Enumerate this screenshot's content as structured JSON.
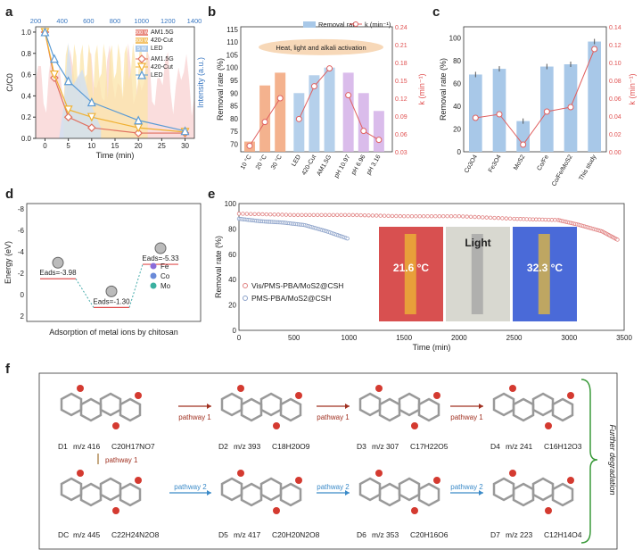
{
  "figure": {
    "panel_letters": [
      "a",
      "b",
      "c",
      "d",
      "e",
      "f"
    ]
  },
  "colors": {
    "am15g": "#e07060",
    "cut420": "#f0b030",
    "led": "#5b9bd5",
    "removal_bar": "#a8c8e8",
    "k_line": "#e06060",
    "red_axis": "#e05050",
    "blue_axis": "#3a78c2"
  },
  "chart_data": [
    {
      "id": "a",
      "type": "line",
      "xlabel": "Time (min)",
      "ylabel": "C/C0",
      "ylabel_right": "Intensity (a.u.)",
      "top_axis_ticks": [
        "200",
        "400",
        "600",
        "800",
        "1000",
        "1200",
        "1400"
      ],
      "xticks": [
        "0",
        "5",
        "10",
        "15",
        "20",
        "25",
        "30"
      ],
      "yticks": [
        "0.0",
        "0.2",
        "0.4",
        "0.6",
        "0.8",
        "1.0"
      ],
      "xlim": [
        -2,
        32
      ],
      "ylim": [
        0,
        1.05
      ],
      "spectrum_legend": [
        {
          "name": "300 W",
          "label": "AM1.5G"
        },
        {
          "name": "300 W",
          "label": "420-Cut"
        },
        {
          "name": "5 W",
          "label": "LED"
        }
      ],
      "series": [
        {
          "name": "AM1.5G",
          "marker": "diamond",
          "x": [
            0,
            2,
            5,
            10,
            20,
            30
          ],
          "y": [
            1.0,
            0.57,
            0.2,
            0.1,
            0.05,
            0.05
          ]
        },
        {
          "name": "420-Cut",
          "marker": "triangle-down",
          "x": [
            0,
            2,
            5,
            10,
            20,
            30
          ],
          "y": [
            1.0,
            0.6,
            0.27,
            0.2,
            0.1,
            0.06
          ]
        },
        {
          "name": "LED",
          "marker": "triangle-up",
          "x": [
            0,
            2,
            5,
            10,
            20,
            30
          ],
          "y": [
            1.0,
            0.75,
            0.54,
            0.34,
            0.17,
            0.07
          ]
        }
      ]
    },
    {
      "id": "b",
      "type": "bar",
      "ylabel": "Removal rate (%)",
      "ylabel_right": "k (min⁻¹)",
      "legend": [
        "Removal rate",
        "k (min⁻¹)"
      ],
      "annotation": "Heat, light and alkali activation",
      "categories": [
        "10 °C",
        "20 °C",
        "30 °C",
        "LED",
        "420-Cut",
        "AM1.5G",
        "pH 10.97",
        "pH 6.96",
        "pH 3.16"
      ],
      "yticks_left": [
        "70",
        "75",
        "80",
        "85",
        "90",
        "95",
        "100",
        "105",
        "110",
        "115"
      ],
      "yticks_right": [
        "0.03",
        "0.06",
        "0.09",
        "0.12",
        "0.15",
        "0.18",
        "0.21",
        "0.24"
      ],
      "ylim": [
        67,
        116
      ],
      "ylim_right": [
        0.03,
        0.24
      ],
      "values": [
        71,
        93,
        98,
        90,
        97,
        100,
        98,
        90,
        83
      ],
      "k": [
        0.04,
        0.08,
        0.12,
        0.085,
        0.14,
        0.17,
        0.125,
        0.065,
        0.05
      ]
    },
    {
      "id": "c",
      "type": "bar",
      "ylabel": "Removal rate (%)",
      "ylabel_right": "k (min⁻¹)",
      "categories": [
        "Co3O4",
        "Fe3O4",
        "MoS2",
        "Co/Fe",
        "Co/Fe/MoS2",
        "This study"
      ],
      "yticks_left": [
        "0",
        "20",
        "40",
        "60",
        "80",
        "100"
      ],
      "yticks_right": [
        "0.00",
        "0.02",
        "0.04",
        "0.06",
        "0.08",
        "0.10",
        "0.12",
        "0.14"
      ],
      "ylim": [
        0,
        110
      ],
      "ylim_right": [
        0,
        0.14
      ],
      "values": [
        68,
        73,
        27,
        75,
        77,
        97
      ],
      "k": [
        0.038,
        0.042,
        0.008,
        0.045,
        0.05,
        0.115
      ]
    },
    {
      "id": "d",
      "type": "scatter",
      "title": "Adsorption of metal ions by chitosan",
      "ylabel": "Energy (eV)",
      "yticks": [
        "-8",
        "-6",
        "-4",
        "-2",
        "0",
        "2"
      ],
      "ylim": [
        -8.5,
        2.5
      ],
      "points": [
        {
          "label": "Eads=-3.98",
          "value": -3.98
        },
        {
          "label": "Eads=-1.30",
          "value": -1.3
        },
        {
          "label": "Eads=-5.33",
          "value": -5.33
        }
      ],
      "legend": [
        "Fe",
        "Co",
        "Mo"
      ]
    },
    {
      "id": "e",
      "type": "scatter",
      "xlabel": "Time (min)",
      "ylabel": "Removal rate (%)",
      "xticks": [
        "0",
        "500",
        "1000",
        "1500",
        "2000",
        "2500",
        "3000",
        "3500"
      ],
      "yticks": [
        "0",
        "20",
        "40",
        "60",
        "80",
        "100"
      ],
      "xlim": [
        0,
        3500
      ],
      "ylim": [
        0,
        100
      ],
      "series": [
        {
          "name": "Vis/PMS-PBA/MoS2@CSH",
          "x": [
            0,
            500,
            1000,
            1500,
            2000,
            2500,
            2900,
            3100,
            3300,
            3450
          ],
          "y": [
            92,
            91,
            91,
            90,
            90,
            88,
            87,
            83,
            78,
            71
          ]
        },
        {
          "name": "PMS-PBA/MoS2@CSH",
          "x": [
            0,
            200,
            400,
            600,
            800,
            1000
          ],
          "y": [
            88,
            86,
            85,
            83,
            78,
            72
          ]
        }
      ],
      "inset_labels": [
        "21.6 °C",
        "Light",
        "32.3 °C"
      ]
    }
  ],
  "panel_f": {
    "side_label": "Further degradation",
    "molecules": [
      {
        "id": "D1",
        "mz": "m/z 416",
        "formula": "C20H17NO7"
      },
      {
        "id": "D2",
        "mz": "m/z 393",
        "formula": "C18H20O9"
      },
      {
        "id": "D3",
        "mz": "m/z 307",
        "formula": "C17H22O5"
      },
      {
        "id": "D4",
        "mz": "m/z 241",
        "formula": "C16H12O3"
      },
      {
        "id": "DC",
        "mz": "m/z 445",
        "formula": "C22H24N2O8"
      },
      {
        "id": "D5",
        "mz": "m/z 417",
        "formula": "C20H20N2O8"
      },
      {
        "id": "D6",
        "mz": "m/z 353",
        "formula": "C20H16O6"
      },
      {
        "id": "D7",
        "mz": "m/z 223",
        "formula": "C12H14O4"
      }
    ],
    "pathway1_label": "pathway 1",
    "pathway2_label": "pathway 2"
  }
}
